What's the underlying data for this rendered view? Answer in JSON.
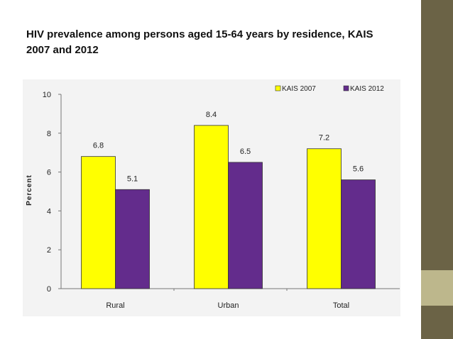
{
  "slide": {
    "title": "HIV prevalence among persons aged 15-64 years by residence, KAIS 2007 and 2012"
  },
  "colors": {
    "series_2007": "#ffff00",
    "series_2012": "#632c8c",
    "sidebar": "#6b6346",
    "sidebar_accent": "#bdb78c"
  },
  "chart_data": {
    "type": "bar",
    "categories": [
      "Rural",
      "Urban",
      "Total"
    ],
    "series": [
      {
        "name": "KAIS 2007",
        "values": [
          6.8,
          8.4,
          7.2
        ],
        "labels": [
          "6.8",
          "8.4",
          "7.2"
        ]
      },
      {
        "name": "KAIS 2012",
        "values": [
          5.1,
          6.5,
          5.6
        ],
        "labels": [
          "5.1",
          "6.5",
          "5.6"
        ]
      }
    ],
    "title": "",
    "xlabel": "",
    "ylabel": "Percent",
    "ylim": [
      0,
      10
    ],
    "yticks": [
      "0",
      "2",
      "4",
      "6",
      "8",
      "10"
    ],
    "grid": false,
    "legend_position": "top-right"
  }
}
